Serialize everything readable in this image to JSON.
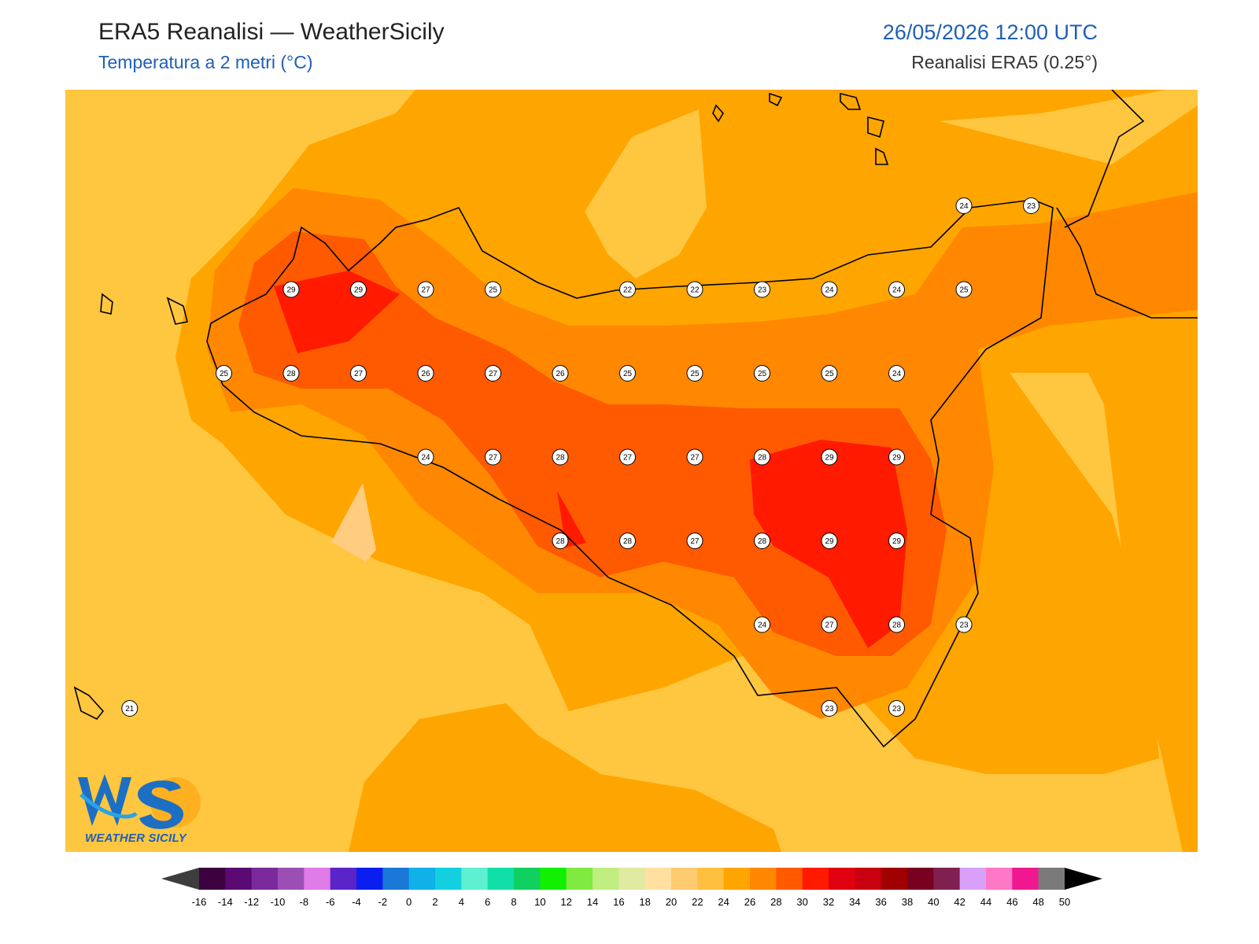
{
  "header": {
    "title": "ERA5 Reanalisi — WeatherSicily",
    "subtitle": "Temperatura a 2 metri (°C)",
    "datetime": "26/05/2026 12:00 UTC",
    "source": "Reanalisi ERA5 (0.25°)"
  },
  "logo": {
    "text": "WS",
    "subtext": "WEATHER SICILY"
  },
  "colors": {
    "t20_22": "#ffc640",
    "t22_24": "#ffa500",
    "t24_26": "#ff8800",
    "t26_28": "#ff5a00",
    "t28_30": "#ff1a00",
    "t18_20": "#ffcc80",
    "coast": "#000000"
  },
  "colorbar": {
    "ticks": [
      "-16",
      "-14",
      "-12",
      "-10",
      "-8",
      "-6",
      "-4",
      "-2",
      "0",
      "2",
      "4",
      "6",
      "8",
      "10",
      "12",
      "14",
      "16",
      "18",
      "20",
      "22",
      "24",
      "26",
      "28",
      "30",
      "32",
      "34",
      "36",
      "38",
      "40",
      "42",
      "44",
      "46",
      "48",
      "50"
    ],
    "colors": [
      "#3d0041",
      "#5a0a72",
      "#7a2a9a",
      "#9b4fb5",
      "#e07be8",
      "#5a24c8",
      "#0a1ef0",
      "#1a78d8",
      "#10b0e8",
      "#12d0e0",
      "#5ef0d0",
      "#10e0a8",
      "#10d060",
      "#10f000",
      "#80ea40",
      "#c0ee80",
      "#e0eaa0",
      "#ffe0a0",
      "#ffca70",
      "#ffc040",
      "#ffa500",
      "#ff8800",
      "#ff5a00",
      "#ff1a00",
      "#e00010",
      "#c80010",
      "#a00000",
      "#780020",
      "#802050",
      "#d8a0f8",
      "#ff78c8",
      "#f01890",
      "#7a7a7a",
      "#3a3a3a"
    ]
  },
  "station_values": [
    {
      "lat": 38.0,
      "lon": 12.5,
      "value": "29"
    },
    {
      "lat": 38.0,
      "lon": 12.75,
      "value": "29"
    },
    {
      "lat": 38.0,
      "lon": 13.0,
      "value": "27"
    },
    {
      "lat": 38.0,
      "lon": 13.25,
      "value": "25"
    },
    {
      "lat": 38.0,
      "lon": 13.75,
      "value": "22"
    },
    {
      "lat": 38.0,
      "lon": 14.0,
      "value": "22"
    },
    {
      "lat": 38.0,
      "lon": 14.25,
      "value": "23"
    },
    {
      "lat": 38.0,
      "lon": 14.5,
      "value": "24"
    },
    {
      "lat": 38.0,
      "lon": 14.75,
      "value": "24"
    },
    {
      "lat": 38.0,
      "lon": 15.0,
      "value": "25"
    },
    {
      "lat": 38.25,
      "lon": 15.0,
      "value": "24"
    },
    {
      "lat": 38.25,
      "lon": 15.25,
      "value": "23"
    },
    {
      "lat": 37.75,
      "lon": 12.25,
      "value": "25"
    },
    {
      "lat": 37.75,
      "lon": 12.5,
      "value": "28"
    },
    {
      "lat": 37.75,
      "lon": 12.75,
      "value": "27"
    },
    {
      "lat": 37.75,
      "lon": 13.0,
      "value": "26"
    },
    {
      "lat": 37.75,
      "lon": 13.25,
      "value": "27"
    },
    {
      "lat": 37.75,
      "lon": 13.5,
      "value": "26"
    },
    {
      "lat": 37.75,
      "lon": 13.75,
      "value": "25"
    },
    {
      "lat": 37.75,
      "lon": 14.0,
      "value": "25"
    },
    {
      "lat": 37.75,
      "lon": 14.25,
      "value": "25"
    },
    {
      "lat": 37.75,
      "lon": 14.5,
      "value": "25"
    },
    {
      "lat": 37.75,
      "lon": 14.75,
      "value": "24"
    },
    {
      "lat": 37.5,
      "lon": 13.0,
      "value": "24"
    },
    {
      "lat": 37.5,
      "lon": 13.25,
      "value": "27"
    },
    {
      "lat": 37.5,
      "lon": 13.5,
      "value": "28"
    },
    {
      "lat": 37.5,
      "lon": 13.75,
      "value": "27"
    },
    {
      "lat": 37.5,
      "lon": 14.0,
      "value": "27"
    },
    {
      "lat": 37.5,
      "lon": 14.25,
      "value": "28"
    },
    {
      "lat": 37.5,
      "lon": 14.5,
      "value": "29"
    },
    {
      "lat": 37.5,
      "lon": 14.75,
      "value": "29"
    },
    {
      "lat": 37.25,
      "lon": 13.5,
      "value": "28"
    },
    {
      "lat": 37.25,
      "lon": 13.75,
      "value": "28"
    },
    {
      "lat": 37.25,
      "lon": 14.0,
      "value": "27"
    },
    {
      "lat": 37.25,
      "lon": 14.25,
      "value": "28"
    },
    {
      "lat": 37.25,
      "lon": 14.5,
      "value": "29"
    },
    {
      "lat": 37.25,
      "lon": 14.75,
      "value": "29"
    },
    {
      "lat": 37.0,
      "lon": 14.25,
      "value": "24"
    },
    {
      "lat": 37.0,
      "lon": 14.5,
      "value": "27"
    },
    {
      "lat": 37.0,
      "lon": 14.75,
      "value": "28"
    },
    {
      "lat": 37.0,
      "lon": 15.0,
      "value": "23"
    },
    {
      "lat": 36.75,
      "lon": 14.5,
      "value": "23"
    },
    {
      "lat": 36.75,
      "lon": 14.75,
      "value": "23"
    },
    {
      "lat": 36.75,
      "lon": 11.9,
      "value": "21"
    }
  ]
}
